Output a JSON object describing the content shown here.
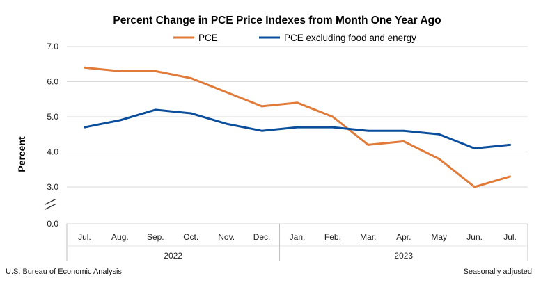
{
  "chart_data": {
    "type": "line",
    "title": "Percent Change in PCE Price Indexes from Month One Year Ago",
    "ylabel": "Percent",
    "categories": [
      "Jul.",
      "Aug.",
      "Sep.",
      "Oct.",
      "Nov.",
      "Dec.",
      "Jan.",
      "Feb.",
      "Mar.",
      "Apr.",
      "May",
      "Jun.",
      "Jul."
    ],
    "year_groups": [
      {
        "label": "2022",
        "start": 0,
        "end": 5
      },
      {
        "label": "2023",
        "start": 6,
        "end": 12
      }
    ],
    "y_ticks": [
      "0.0",
      "3.0",
      "4.0",
      "5.0",
      "6.0",
      "7.0"
    ],
    "y_break": true,
    "ylim": [
      3.0,
      7.0
    ],
    "grid": true,
    "legend_position": "top-center",
    "series": [
      {
        "name": "PCE",
        "color": "#e07b39",
        "values": [
          6.4,
          6.3,
          6.3,
          6.1,
          5.7,
          5.3,
          5.4,
          5.0,
          4.2,
          4.3,
          3.8,
          3.0,
          3.3
        ]
      },
      {
        "name": "PCE excluding food and energy",
        "color": "#0b4f9c",
        "values": [
          4.7,
          4.9,
          5.2,
          5.1,
          4.8,
          4.6,
          4.7,
          4.7,
          4.6,
          4.6,
          4.5,
          4.1,
          4.2
        ]
      }
    ]
  },
  "footer": {
    "source": "U.S. Bureau of Economic Analysis",
    "note": "Seasonally adjusted"
  }
}
